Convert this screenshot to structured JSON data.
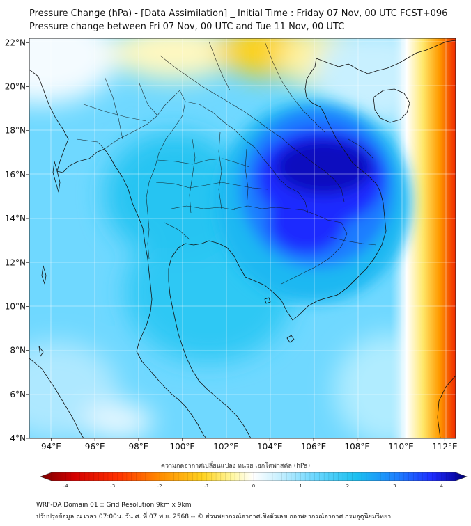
{
  "header": {
    "title": "Pressure Change (hPa) - [Data Assimilation] _ Initial Time : Friday 07 Nov, 00 UTC FCST+096",
    "subtitle": "Pressure change between Fri 07 Nov, 00 UTC and Tue 11 Nov, 00 UTC"
  },
  "map": {
    "lat_ticks": [
      "22°N",
      "20°N",
      "18°N",
      "16°N",
      "14°N",
      "12°N",
      "10°N",
      "8°N",
      "6°N",
      "4°N"
    ],
    "lat_values": [
      22,
      20,
      18,
      16,
      14,
      12,
      10,
      8,
      6,
      4
    ],
    "lon_ticks": [
      "94°E",
      "96°E",
      "98°E",
      "100°E",
      "102°E",
      "104°E",
      "106°E",
      "108°E",
      "110°E",
      "112°E"
    ],
    "lon_values": [
      94,
      96,
      98,
      100,
      102,
      104,
      106,
      108,
      110,
      112
    ],
    "lon_range": [
      93,
      112.5
    ],
    "lat_range": [
      4,
      22.2
    ]
  },
  "colorbar": {
    "label": "ความกดอากาศเปลี่ยนแปลง หน่วย เฮกโตพาสคัล (hPa)",
    "ticks": [
      "-4",
      "-3",
      "-2",
      "-1",
      "0",
      "1",
      "2",
      "3",
      "4"
    ],
    "tick_values": [
      -4,
      -3,
      -2,
      -1,
      0,
      1,
      2,
      3,
      4
    ],
    "range": [
      -4.3,
      4.3
    ],
    "colors": [
      "#7a0000",
      "#d40000",
      "#ff3000",
      "#ff8c00",
      "#ffd21e",
      "#fff7a0",
      "#ffffff",
      "#c8f0ff",
      "#6fd8ff",
      "#1cc0f0",
      "#1e7dff",
      "#1e2cff",
      "#0a0ab0",
      "#000066"
    ]
  },
  "footer": {
    "line1": "WRF-DA Domain 01 :: Grid Resolution 9km x 9km",
    "line2": "ปรับปรุงข้อมูล ณ เวลา 07:00น. วัน ศ. ที่ 07 พ.ย. 2568 -- © ส่วนพยากรณ์อากาศเชิงตัวเลข กองพยากรณ์อากาศ กรมอุตุนิยมวิทยา"
  }
}
